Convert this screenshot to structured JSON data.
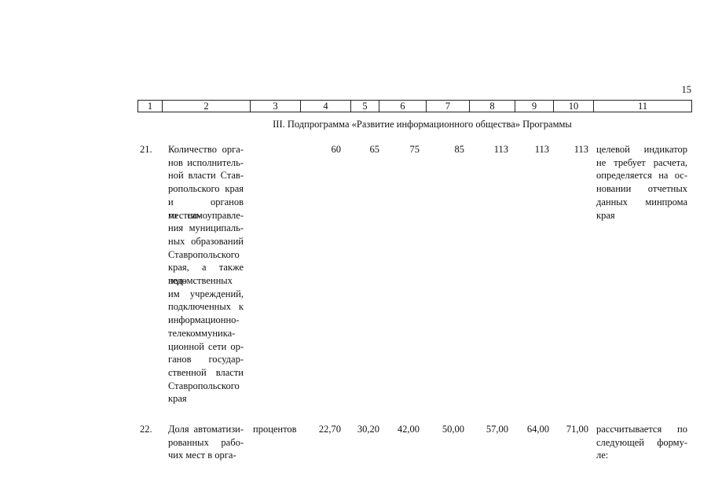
{
  "page_number": "15",
  "header": {
    "columns": [
      "1",
      "2",
      "3",
      "4",
      "5",
      "6",
      "7",
      "8",
      "9",
      "10",
      "11"
    ]
  },
  "section_title": "III. Подпрограмма «Развитие информационного общества» Программы",
  "rows": [
    {
      "number": "21.",
      "name_lines": [
        "Количество орга-",
        "нов исполнитель-",
        "ной власти Став-",
        "ропольского края",
        "и органов местно-",
        "го самоуправле-",
        "ния муниципаль-",
        "ных образований",
        "Ставропольского",
        "края, а также под-",
        "ведомственных",
        "им учреждений,",
        "подключенных к",
        "информационно-",
        "телекоммуника-",
        "ционной сети ор-",
        "ганов государ-",
        "ственной власти",
        "Ставропольского",
        "края"
      ],
      "values": [
        "60",
        "65",
        "75",
        "85",
        "113",
        "113",
        "113"
      ],
      "note_lines": [
        "целевой индикатор",
        "не требует расчета,",
        "определяется на ос-",
        "новании отчетных",
        "данных минпрома",
        "края"
      ]
    },
    {
      "number": "22.",
      "name_lines": [
        "Доля автоматизи-",
        "рованных рабо-",
        "чих мест в орга-"
      ],
      "unit": "процентов",
      "values": [
        "22,70",
        "30,20",
        "42,00",
        "50,00",
        "57,00",
        "64,00",
        "71,00"
      ],
      "note_lines": [
        "рассчитывается по",
        "следующей форму-",
        "ле:"
      ]
    }
  ]
}
